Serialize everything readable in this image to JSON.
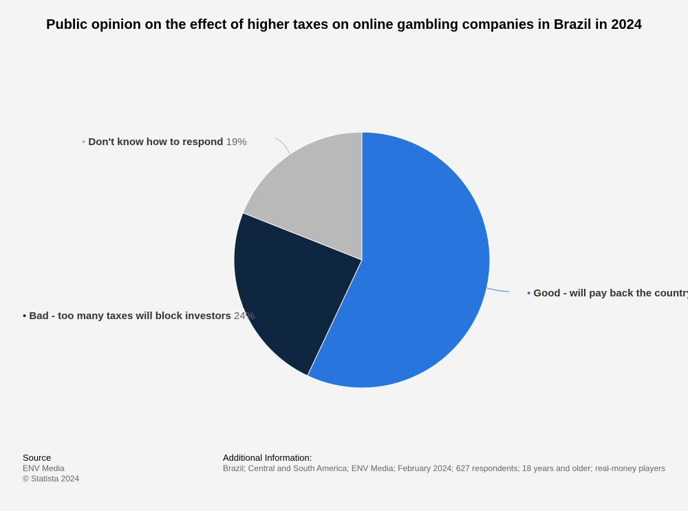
{
  "chart_data": {
    "type": "pie",
    "title": "Public opinion on the effect of higher taxes on online gambling companies in Brazil in 2024",
    "slices": [
      {
        "label": "Good - will pay back the country",
        "value": 57,
        "value_label": "57%",
        "color": "#2876dd"
      },
      {
        "label": "Bad - too many taxes will block investors",
        "value": 24,
        "value_label": "24%",
        "color": "#0f2640"
      },
      {
        "label": "Don't know how to respond",
        "value": 19,
        "value_label": "19%",
        "color": "#b9b9b9"
      }
    ],
    "start_angle_deg": 0,
    "direction": "clockwise",
    "legend": "none"
  },
  "footer": {
    "source_heading": "Source",
    "source_name": "ENV Media",
    "copyright": "© Statista 2024",
    "info_heading": "Additional Information:",
    "info_text": "Brazil; Central and South America; ENV Media; February 2024; 627 respondents; 18 years and older; real-money players"
  }
}
